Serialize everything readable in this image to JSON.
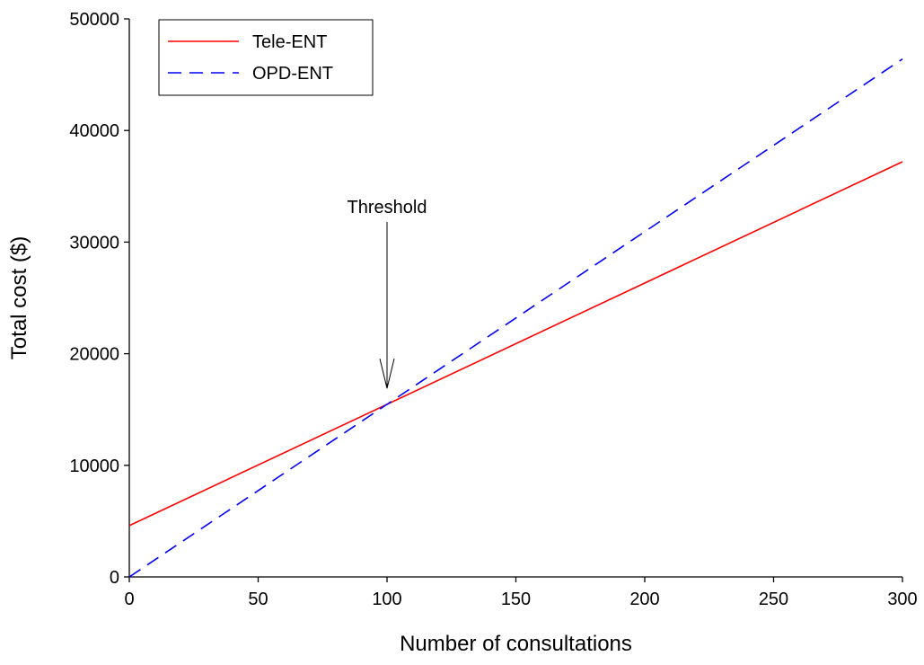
{
  "chart_data": {
    "type": "line",
    "xlabel": "Number of consultations",
    "ylabel": "Total cost ($)",
    "xlim": [
      0,
      300
    ],
    "ylim": [
      0,
      50000
    ],
    "xticks": [
      0,
      50,
      100,
      150,
      200,
      250,
      300
    ],
    "yticks": [
      0,
      10000,
      20000,
      30000,
      40000,
      50000
    ],
    "x_tick_labels": [
      "0",
      "50",
      "100",
      "150",
      "200",
      "250",
      "300"
    ],
    "y_tick_labels": [
      "0",
      "10000",
      "20000",
      "30000",
      "40000",
      "50000"
    ],
    "grid": false,
    "legend": "top-left",
    "series": [
      {
        "name": "Tele-ENT",
        "color": "#ff0000",
        "dash": "solid",
        "points": [
          [
            0,
            4600
          ],
          [
            300,
            37200
          ]
        ]
      },
      {
        "name": "OPD-ENT",
        "color": "#0000ff",
        "dash": "dashed",
        "points": [
          [
            0,
            0
          ],
          [
            300,
            46400
          ]
        ]
      }
    ],
    "annotations": [
      {
        "text": "Threshold",
        "target": [
          100,
          16900
        ],
        "arrow": "down"
      }
    ]
  }
}
